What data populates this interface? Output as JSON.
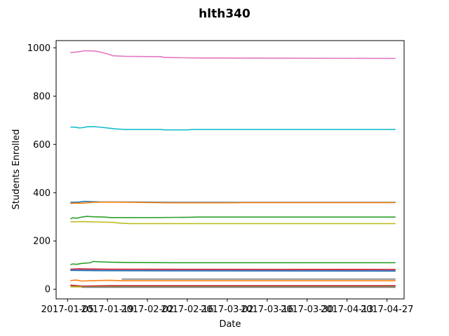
{
  "chart_data": {
    "type": "line",
    "title": "hlth340",
    "xlabel": "Date",
    "ylabel": "Students Enrolled",
    "x_range": [
      "2017-01-01",
      "2017-05-03"
    ],
    "ylim": [
      -40,
      1030
    ],
    "x_ticks": [
      "2017-01-05",
      "2017-01-19",
      "2017-02-02",
      "2017-02-16",
      "2017-03-02",
      "2017-03-16",
      "2017-03-30",
      "2017-04-13",
      "2017-04-27"
    ],
    "x_tick_labels": [
      "2017-01-05",
      "2017-01-19",
      "2017-02-02",
      "2017-02-16",
      "2017-03-02",
      "2017-03-16",
      "2017-03-30",
      "2017-04-13",
      "2017-04-27"
    ],
    "y_ticks": [
      0,
      200,
      400,
      600,
      800,
      1000
    ],
    "grid": false,
    "legend": "none",
    "series": [
      {
        "color": "#e377c2",
        "points": [
          [
            "2017-01-06",
            980
          ],
          [
            "2017-01-09",
            984
          ],
          [
            "2017-01-11",
            988
          ],
          [
            "2017-01-14",
            987
          ],
          [
            "2017-01-16",
            984
          ],
          [
            "2017-01-19",
            975
          ],
          [
            "2017-01-21",
            967
          ],
          [
            "2017-01-25",
            965
          ],
          [
            "2017-02-07",
            963
          ],
          [
            "2017-02-08",
            960
          ],
          [
            "2017-02-20",
            958
          ],
          [
            "2017-04-30",
            956
          ]
        ]
      },
      {
        "color": "#17becf",
        "points": [
          [
            "2017-01-06",
            672
          ],
          [
            "2017-01-08",
            671
          ],
          [
            "2017-01-09",
            668
          ],
          [
            "2017-01-10",
            669
          ],
          [
            "2017-01-12",
            673
          ],
          [
            "2017-01-14",
            674
          ],
          [
            "2017-01-16",
            672
          ],
          [
            "2017-01-19",
            668
          ],
          [
            "2017-01-22",
            664
          ],
          [
            "2017-01-25",
            662
          ],
          [
            "2017-02-07",
            662
          ],
          [
            "2017-02-08",
            660
          ],
          [
            "2017-02-16",
            660
          ],
          [
            "2017-02-18",
            662
          ],
          [
            "2017-04-30",
            662
          ]
        ]
      },
      {
        "color": "#1f77b4",
        "points": [
          [
            "2017-01-06",
            360
          ],
          [
            "2017-01-09",
            361
          ],
          [
            "2017-01-11",
            364
          ],
          [
            "2017-01-13",
            363
          ],
          [
            "2017-01-16",
            362
          ],
          [
            "2017-02-01",
            361
          ],
          [
            "2017-02-10",
            360
          ],
          [
            "2017-03-01",
            360
          ],
          [
            "2017-04-30",
            360
          ]
        ]
      },
      {
        "color": "#ff7f0e",
        "points": [
          [
            "2017-01-06",
            355
          ],
          [
            "2017-01-08",
            357
          ],
          [
            "2017-01-10",
            356
          ],
          [
            "2017-01-12",
            358
          ],
          [
            "2017-01-14",
            360
          ],
          [
            "2017-01-20",
            361
          ],
          [
            "2017-02-05",
            359
          ],
          [
            "2017-02-10",
            358
          ],
          [
            "2017-03-02",
            358
          ],
          [
            "2017-03-08",
            359
          ],
          [
            "2017-04-30",
            359
          ]
        ]
      },
      {
        "color": "#2ca02c",
        "points": [
          [
            "2017-01-06",
            292
          ],
          [
            "2017-01-07",
            296
          ],
          [
            "2017-01-08",
            294
          ],
          [
            "2017-01-10",
            299
          ],
          [
            "2017-01-12",
            302
          ],
          [
            "2017-01-14",
            300
          ],
          [
            "2017-01-18",
            299
          ],
          [
            "2017-01-20",
            297
          ],
          [
            "2017-02-05",
            297
          ],
          [
            "2017-02-16",
            298
          ],
          [
            "2017-02-20",
            299
          ],
          [
            "2017-04-30",
            299
          ]
        ]
      },
      {
        "color": "#bcbd22",
        "points": [
          [
            "2017-01-06",
            279
          ],
          [
            "2017-01-10",
            280
          ],
          [
            "2017-01-15",
            279
          ],
          [
            "2017-01-21",
            277
          ],
          [
            "2017-01-23",
            274
          ],
          [
            "2017-01-27",
            272
          ],
          [
            "2017-04-30",
            272
          ]
        ]
      },
      {
        "color": "#2ca02c",
        "points": [
          [
            "2017-01-06",
            102
          ],
          [
            "2017-01-07",
            105
          ],
          [
            "2017-01-08",
            103
          ],
          [
            "2017-01-10",
            107
          ],
          [
            "2017-01-13",
            110
          ],
          [
            "2017-01-14",
            115
          ],
          [
            "2017-01-17",
            113
          ],
          [
            "2017-01-20",
            112
          ],
          [
            "2017-01-25",
            111
          ],
          [
            "2017-02-10",
            110
          ],
          [
            "2017-04-30",
            110
          ]
        ]
      },
      {
        "color": "#d62728",
        "points": [
          [
            "2017-01-06",
            83
          ],
          [
            "2017-01-09",
            85
          ],
          [
            "2017-01-12",
            84
          ],
          [
            "2017-01-20",
            83
          ],
          [
            "2017-04-30",
            82
          ]
        ]
      },
      {
        "color": "#9467bd",
        "points": [
          [
            "2017-01-06",
            80
          ],
          [
            "2017-01-12",
            80
          ],
          [
            "2017-01-20",
            79
          ],
          [
            "2017-04-30",
            78
          ]
        ]
      },
      {
        "color": "#1f77b4",
        "points": [
          [
            "2017-01-06",
            78
          ],
          [
            "2017-01-15",
            77
          ],
          [
            "2017-02-10",
            76
          ],
          [
            "2017-04-30",
            75
          ]
        ]
      },
      {
        "color": "#7f7f7f",
        "points": [
          [
            "2017-01-24",
            42
          ],
          [
            "2017-04-30",
            42
          ]
        ]
      },
      {
        "color": "#ff7f0e",
        "points": [
          [
            "2017-01-06",
            36
          ],
          [
            "2017-01-08",
            38
          ],
          [
            "2017-01-10",
            34
          ],
          [
            "2017-01-14",
            36
          ],
          [
            "2017-01-20",
            37
          ],
          [
            "2017-01-25",
            35
          ],
          [
            "2017-04-30",
            35
          ]
        ]
      },
      {
        "color": "#d62728",
        "points": [
          [
            "2017-01-06",
            17
          ],
          [
            "2017-01-08",
            15
          ],
          [
            "2017-01-10",
            13
          ],
          [
            "2017-01-20",
            15
          ],
          [
            "2017-04-30",
            15
          ]
        ]
      },
      {
        "color": "#8c564b",
        "points": [
          [
            "2017-01-06",
            12
          ],
          [
            "2017-01-12",
            10
          ],
          [
            "2017-01-22",
            12
          ],
          [
            "2017-04-30",
            12
          ]
        ]
      },
      {
        "color": "#bcbd22",
        "points": [
          [
            "2017-01-06",
            10
          ],
          [
            "2017-01-15",
            9
          ],
          [
            "2017-04-30",
            9
          ]
        ]
      },
      {
        "color": "#7f7f7f",
        "points": [
          [
            "2017-01-10",
            8
          ],
          [
            "2017-04-30",
            8
          ]
        ]
      }
    ]
  }
}
